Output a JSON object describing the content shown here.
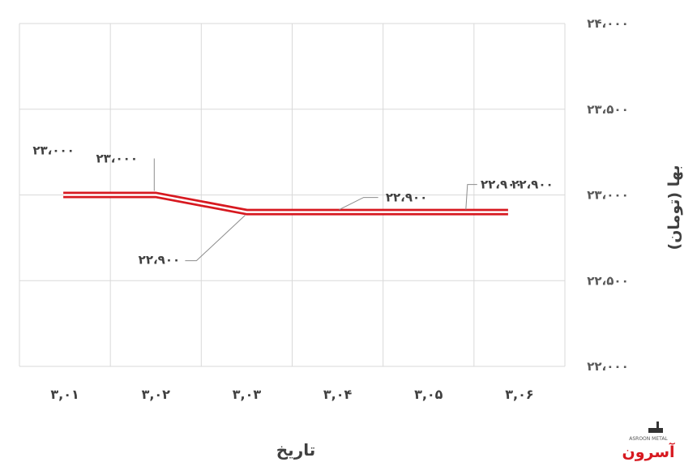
{
  "chart_data": {
    "type": "line",
    "categories": [
      "۳,۰۱",
      "۳,۰۲",
      "۳,۰۳",
      "۳,۰۴",
      "۳,۰۵",
      "۳,۰۶"
    ],
    "series": [
      {
        "values": [
          23000,
          23000,
          22900,
          22900,
          22900,
          22900
        ]
      }
    ],
    "data_labels": [
      "۲۳،۰۰۰",
      "۲۳،۰۰۰",
      "۲۲،۹۰۰",
      "۲۲،۹۰۰",
      "۲۲،۹۰۰",
      "۲۲،۹۰۰"
    ],
    "yticks": [
      22000,
      22500,
      23000,
      23500,
      24000
    ],
    "ytick_labels": [
      "۲۲،۰۰۰",
      "۲۲،۵۰۰",
      "۲۳،۰۰۰",
      "۲۳،۵۰۰",
      "۲۴،۰۰۰"
    ],
    "ylim": [
      22000,
      24000
    ],
    "xlabel": "تاریخ",
    "ylabel": "بها (تومان)",
    "grid": true,
    "y_axis_side": "right",
    "line_color": "#d71920",
    "logo": {
      "text": "آسرون",
      "subtext": "ASROON METAL"
    }
  }
}
